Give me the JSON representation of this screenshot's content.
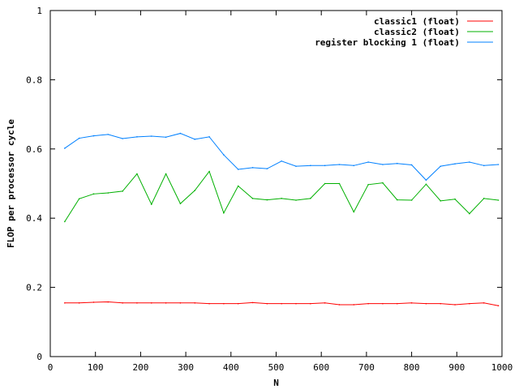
{
  "chart_data": {
    "type": "line",
    "title": "",
    "xlabel": "N",
    "ylabel": "FLOP per processor cycle",
    "xlim": [
      0,
      1000
    ],
    "ylim": [
      0,
      1
    ],
    "xticks": [
      "0",
      "100",
      "200",
      "300",
      "400",
      "500",
      "600",
      "700",
      "800",
      "900",
      "1000"
    ],
    "yticks": [
      "0",
      "0.2",
      "0.4",
      "0.6",
      "0.8",
      "1"
    ],
    "grid": false,
    "legend_position": "top-right",
    "x": [
      32,
      64,
      96,
      128,
      160,
      192,
      224,
      256,
      288,
      320,
      352,
      384,
      416,
      448,
      480,
      512,
      544,
      576,
      608,
      640,
      672,
      704,
      736,
      768,
      800,
      832,
      864,
      896,
      928,
      960,
      992
    ],
    "series": [
      {
        "name": "classic1 (float)",
        "color": "#ff0000",
        "values": [
          0.155,
          0.155,
          0.157,
          0.158,
          0.155,
          0.155,
          0.155,
          0.155,
          0.155,
          0.155,
          0.153,
          0.153,
          0.153,
          0.156,
          0.153,
          0.153,
          0.153,
          0.153,
          0.155,
          0.15,
          0.15,
          0.153,
          0.153,
          0.153,
          0.155,
          0.153,
          0.153,
          0.15,
          0.153,
          0.155,
          0.147
        ]
      },
      {
        "name": "classic2 (float)",
        "color": "#00b000",
        "values": [
          0.39,
          0.456,
          0.47,
          0.473,
          0.478,
          0.528,
          0.44,
          0.528,
          0.442,
          0.48,
          0.535,
          0.415,
          0.493,
          0.457,
          0.453,
          0.457,
          0.452,
          0.457,
          0.5,
          0.5,
          0.418,
          0.497,
          0.502,
          0.453,
          0.452,
          0.498,
          0.45,
          0.455,
          0.413,
          0.457,
          0.452
        ]
      },
      {
        "name": "register blocking 1 (float)",
        "color": "#0080ff",
        "values": [
          0.602,
          0.631,
          0.638,
          0.642,
          0.63,
          0.635,
          0.637,
          0.634,
          0.645,
          0.628,
          0.635,
          0.583,
          0.541,
          0.546,
          0.543,
          0.565,
          0.55,
          0.552,
          0.552,
          0.555,
          0.552,
          0.562,
          0.555,
          0.558,
          0.554,
          0.51,
          0.55,
          0.557,
          0.562,
          0.552,
          0.555
        ]
      }
    ]
  }
}
